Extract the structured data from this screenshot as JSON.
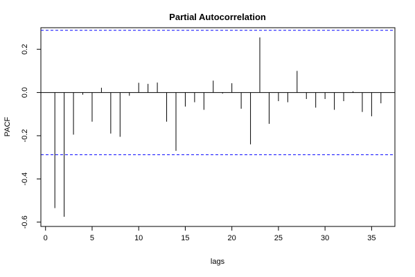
{
  "chart_data": {
    "type": "bar",
    "title": "Partial Autocorrelation",
    "xlabel": "lags",
    "ylabel": "PACF",
    "xlim": [
      -0.5,
      37.5
    ],
    "ylim": [
      -0.62,
      0.3
    ],
    "xticks": [
      0,
      5,
      10,
      15,
      20,
      25,
      30,
      35
    ],
    "yticks": [
      -0.6,
      -0.4,
      -0.2,
      0.0,
      0.2
    ],
    "ytick_labels": [
      "-0.6",
      "-0.4",
      "-0.2",
      "0.0",
      "0.2"
    ],
    "confidence_bounds": {
      "upper": 0.288,
      "lower": -0.288,
      "color": "#0000ff"
    },
    "lags": [
      1,
      2,
      3,
      4,
      5,
      6,
      7,
      8,
      9,
      10,
      11,
      12,
      13,
      14,
      15,
      16,
      17,
      18,
      19,
      20,
      21,
      22,
      23,
      24,
      25,
      26,
      27,
      28,
      29,
      30,
      31,
      32,
      33,
      34,
      35,
      36
    ],
    "values": [
      -0.535,
      -0.575,
      -0.195,
      -0.01,
      -0.135,
      0.022,
      -0.19,
      -0.205,
      -0.015,
      0.045,
      0.04,
      0.046,
      -0.135,
      -0.27,
      -0.065,
      -0.045,
      -0.08,
      0.055,
      -0.005,
      0.043,
      -0.075,
      -0.24,
      0.255,
      -0.145,
      -0.04,
      -0.045,
      0.1,
      -0.03,
      -0.07,
      -0.03,
      -0.08,
      -0.04,
      0.005,
      -0.09,
      -0.11,
      -0.05
    ],
    "grid": false
  }
}
